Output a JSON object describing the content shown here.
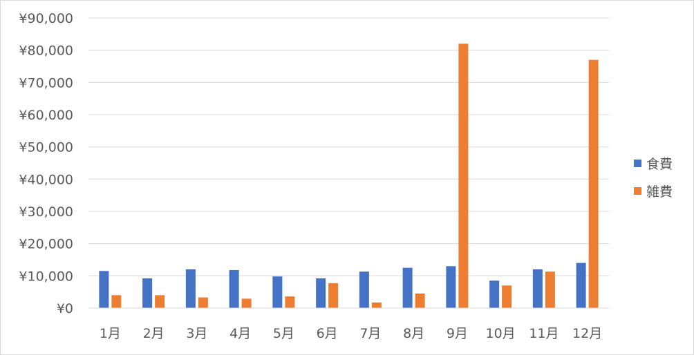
{
  "chart_data": {
    "type": "bar",
    "categories": [
      "1月",
      "2月",
      "3月",
      "4月",
      "5月",
      "6月",
      "7月",
      "8月",
      "9月",
      "10月",
      "11月",
      "12月"
    ],
    "series": [
      {
        "name": "食費",
        "color": "#4472c4",
        "values": [
          11500,
          9200,
          12000,
          11800,
          9800,
          9200,
          11300,
          12500,
          13000,
          8500,
          12000,
          14000
        ]
      },
      {
        "name": "雑費",
        "color": "#ed7d31",
        "values": [
          4000,
          4000,
          3300,
          2900,
          3600,
          7700,
          1700,
          4500,
          82000,
          7000,
          11300,
          77000
        ]
      }
    ],
    "ylim": [
      0,
      90000
    ],
    "yticks": [
      0,
      10000,
      20000,
      30000,
      40000,
      50000,
      60000,
      70000,
      80000,
      90000
    ],
    "ytick_labels": [
      "¥0",
      "¥10,000",
      "¥20,000",
      "¥30,000",
      "¥40,000",
      "¥50,000",
      "¥60,000",
      "¥70,000",
      "¥80,000",
      "¥90,000"
    ],
    "grid": true,
    "gridline_color": "#d9d9d9",
    "legend_position": "right"
  }
}
